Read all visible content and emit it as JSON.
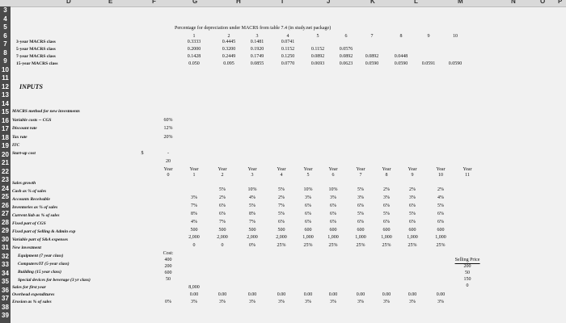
{
  "columns": [
    "D",
    "E",
    "F",
    "G",
    "H",
    "I",
    "J",
    "K",
    "L",
    "M",
    "N",
    "O",
    "P"
  ],
  "row_numbers": [
    "3",
    "4",
    "5",
    "6",
    "7",
    "8",
    "9",
    "10",
    "11",
    "12",
    "13",
    "14",
    "15",
    "16",
    "17",
    "18",
    "19",
    "20",
    "21",
    "22",
    "23",
    "24",
    "25",
    "26",
    "27",
    "28",
    "29",
    "30",
    "31",
    "32",
    "33",
    "34",
    "35",
    "36",
    "37",
    "38",
    "39"
  ],
  "macrs": {
    "title": "Percentage for depreciation under MACRS from table 7.4 (in study.net package)",
    "year_headers": [
      "1",
      "2",
      "3",
      "4",
      "5",
      "6",
      "7",
      "8",
      "9",
      "10"
    ],
    "classes": [
      {
        "label": "3-year MACRS class",
        "rates": [
          "0.3333",
          "0.4445",
          "0.1481",
          "0.0741"
        ]
      },
      {
        "label": "5-year MACRS class",
        "rates": [
          "0.2000",
          "0.3200",
          "0.1920",
          "0.1152",
          "0.1152",
          "0.0576"
        ]
      },
      {
        "label": "7-year MACRS class",
        "rates": [
          "0.1428",
          "0.2449",
          "0.1749",
          "0.1250",
          "0.0892",
          "0.0892",
          "0.0892",
          "0.0448"
        ]
      },
      {
        "label": "15-year MACRS class",
        "rates": [
          "0.050",
          "0.095",
          "0.0855",
          "0.0770",
          "0.0693",
          "0.0623",
          "0.0590",
          "0.0590",
          "0.0591",
          "0.0590"
        ]
      }
    ]
  },
  "inputs": {
    "heading": "INPUTS",
    "rows": [
      {
        "label": "MACRS method for new investments",
        "value": ""
      },
      {
        "label": "Variable costs -- CGS",
        "value": "60%"
      },
      {
        "label": "Discount rate",
        "value": "12%"
      },
      {
        "label": "Tax rate",
        "value": "20%"
      },
      {
        "label": "ITC",
        "value": ""
      },
      {
        "label": "Start-up cost",
        "currency": "$",
        "value": "-"
      },
      {
        "label": "",
        "value": "20"
      }
    ]
  },
  "projection": {
    "year_word": "Year",
    "year_numbers": [
      "0",
      "1",
      "2",
      "3",
      "4",
      "5",
      "6",
      "7",
      "8",
      "9",
      "10",
      "11"
    ],
    "row_labels": [
      "Sales growth",
      "Cash as % of sales",
      "Accounts Receivable",
      "Inventories as % of sales",
      "Current liab as % of sales",
      "Fixed part of CGS",
      "Fixed part of Selling & Admin exp",
      "Variable part of S&A expenses",
      "New investment",
      "Equipment (7 year class)",
      "Computers/IT (5-year class)",
      "Building (15 year class)",
      "Special devices for beverage (3 yr class)",
      "Sales for first year",
      "Overhead expenditures",
      "Erosion as % of sales"
    ],
    "rows": [
      [
        "",
        "",
        "5%",
        "10%",
        "5%",
        "10%",
        "10%",
        "5%",
        "2%",
        "2%",
        "2%",
        ""
      ],
      [
        "",
        "3%",
        "2%",
        "4%",
        "2%",
        "3%",
        "3%",
        "3%",
        "3%",
        "3%",
        "4%",
        ""
      ],
      [
        "",
        "7%",
        "6%",
        "5%",
        "7%",
        "6%",
        "6%",
        "6%",
        "6%",
        "6%",
        "5%",
        ""
      ],
      [
        "",
        "8%",
        "6%",
        "8%",
        "5%",
        "6%",
        "6%",
        "5%",
        "5%",
        "5%",
        "6%",
        ""
      ],
      [
        "",
        "4%",
        "7%",
        "7%",
        "6%",
        "6%",
        "6%",
        "6%",
        "6%",
        "6%",
        "6%",
        ""
      ],
      [
        "",
        "500",
        "500",
        "500",
        "500",
        "600",
        "600",
        "600",
        "600",
        "600",
        "600",
        ""
      ],
      [
        "",
        "2,000",
        "2,000",
        "2,000",
        "2,000",
        "1,000",
        "1,000",
        "1,000",
        "1,000",
        "1,000",
        "1,000",
        ""
      ],
      [
        "",
        "0",
        "0",
        "0%",
        "25%",
        "25%",
        "25%",
        "25%",
        "25%",
        "25%",
        "25%",
        ""
      ]
    ],
    "cost_header": "Cost:",
    "cost_values": [
      "400",
      "200",
      "600",
      "50"
    ],
    "selling_price_header": "Selling Price",
    "selling_price_values": [
      "200",
      "50",
      "150",
      "0"
    ],
    "sales_first_year": "8,000",
    "overhead_row": [
      "",
      "0.00",
      "0.00",
      "0.00",
      "0.00",
      "0.00",
      "0.00",
      "0.00",
      "0.00",
      "0.00",
      "0.00",
      ""
    ],
    "erosion_row": [
      "0%",
      "3%",
      "3%",
      "3%",
      "3%",
      "3%",
      "3%",
      "3%",
      "3%",
      "3%",
      "3%",
      ""
    ]
  }
}
